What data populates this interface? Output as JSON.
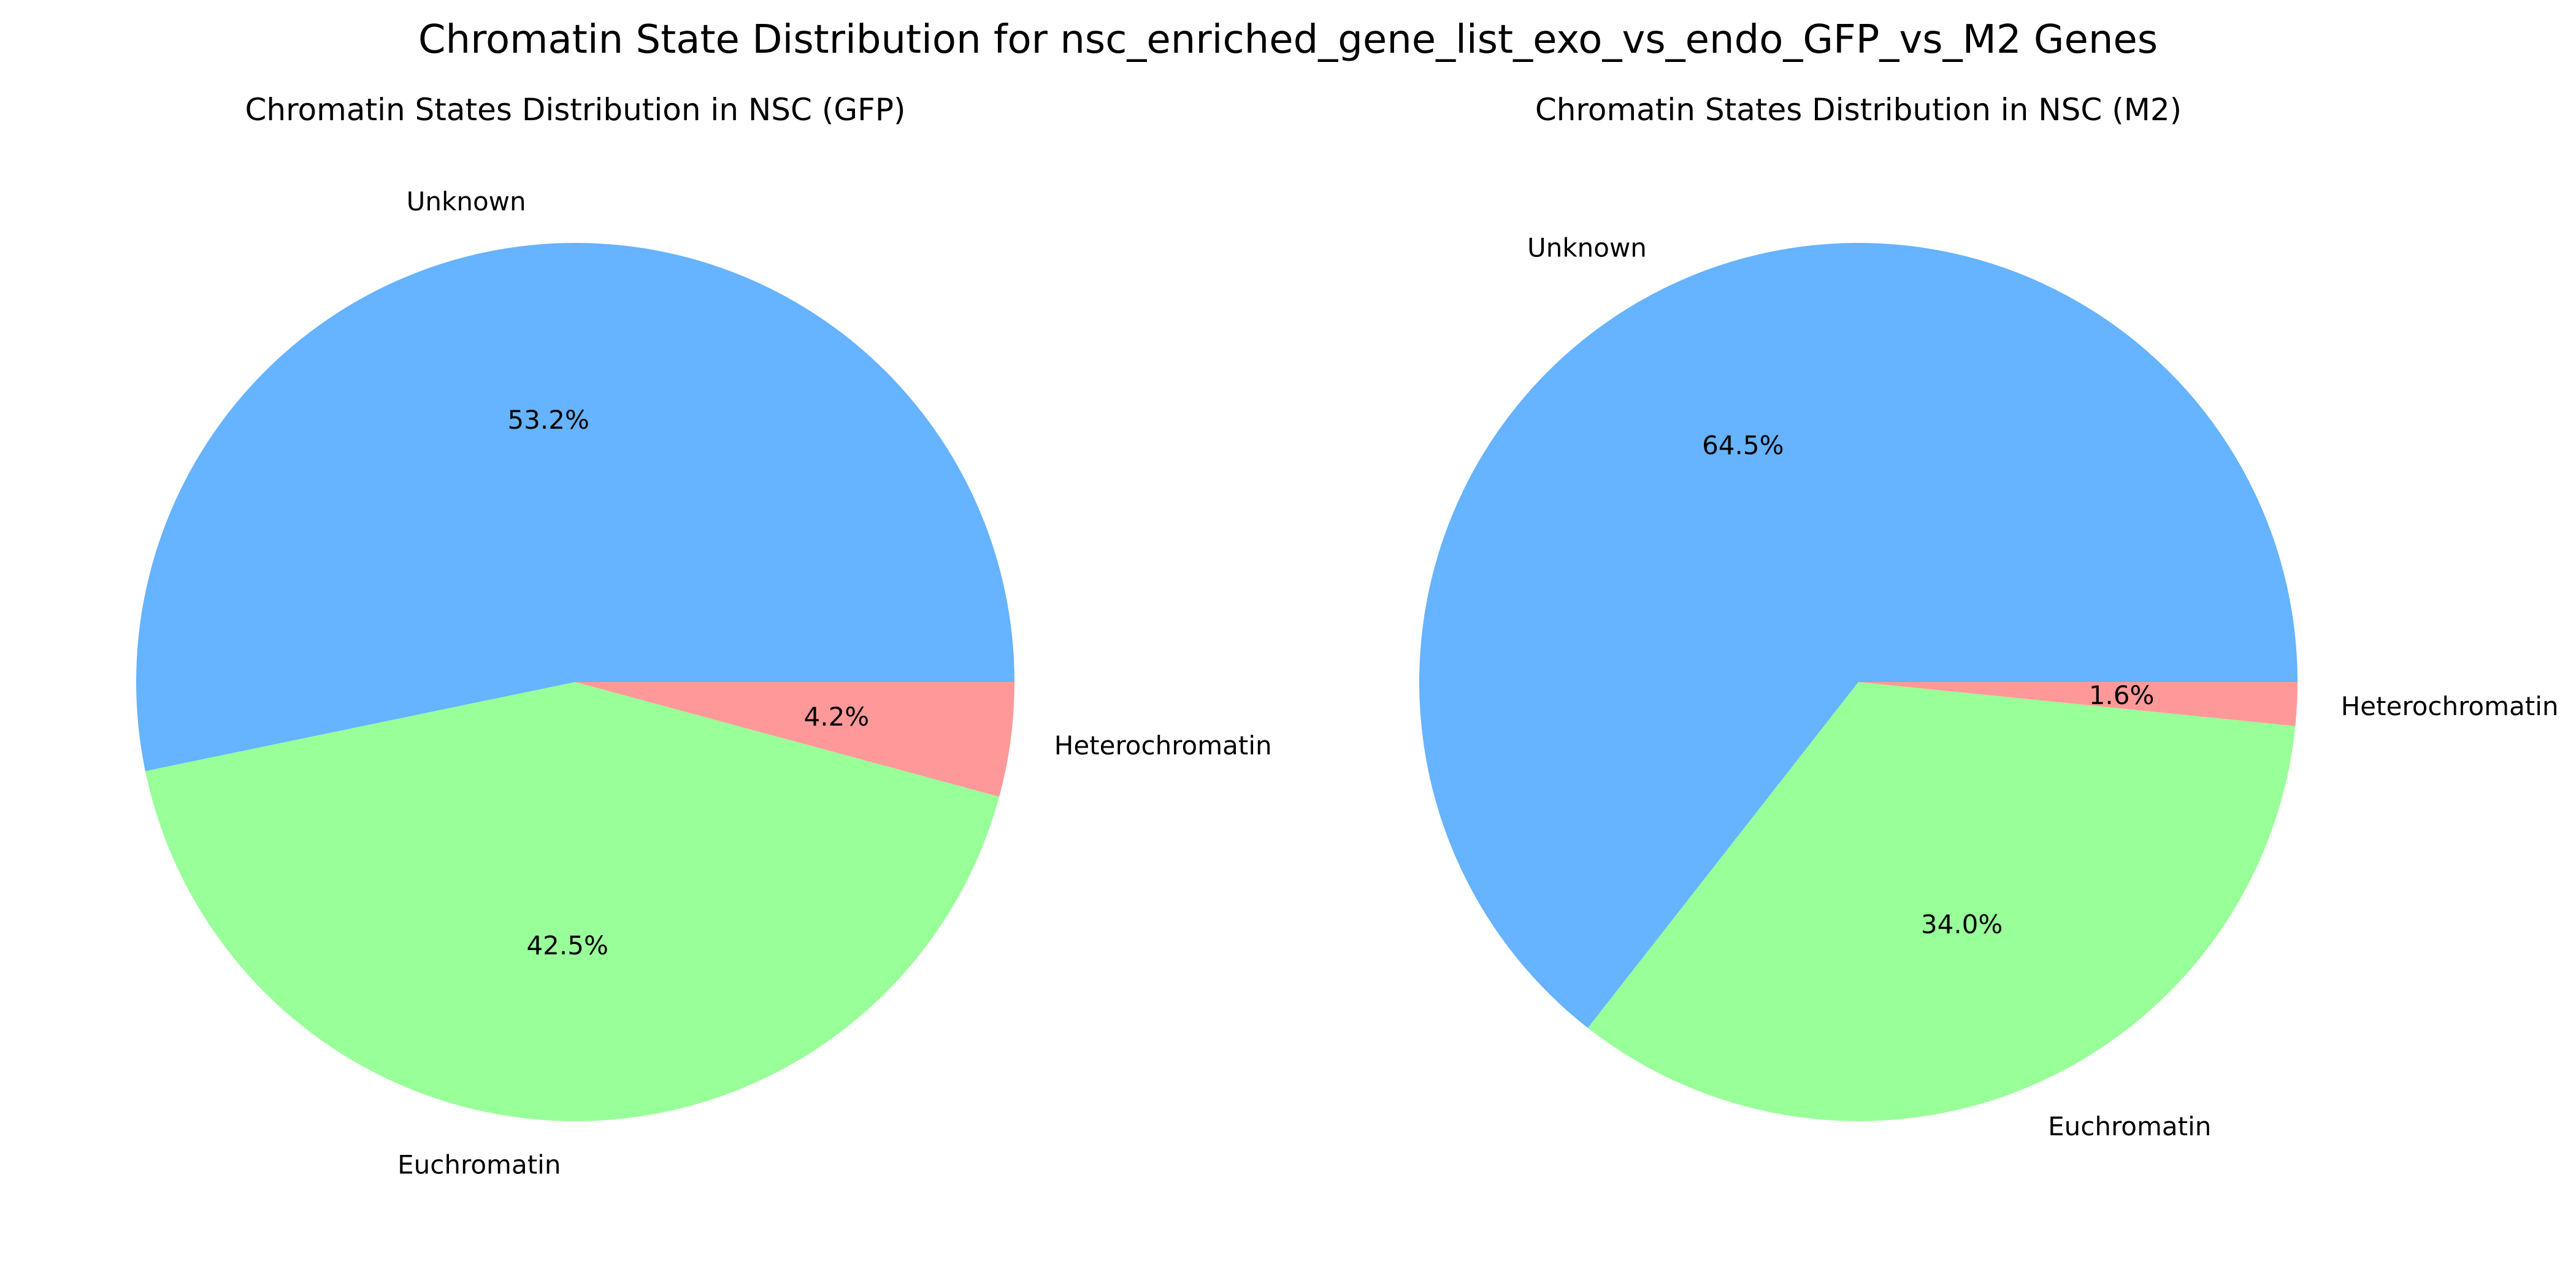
{
  "figure": {
    "title": "Chromatin State Distribution for nsc_enriched_gene_list_exo_vs_endo_GFP_vs_M2 Genes"
  },
  "colors": {
    "Unknown": "#66b3ff",
    "Euchromatin": "#99ff99",
    "Heterochromatin": "#ff9999"
  },
  "chart_data": [
    {
      "type": "pie",
      "title": "Chromatin States Distribution in NSC (GFP)",
      "labels": [
        "Unknown",
        "Euchromatin",
        "Heterochromatin"
      ],
      "values": [
        53.2,
        42.5,
        4.2
      ],
      "value_labels": [
        "53.2%",
        "42.5%",
        "4.2%"
      ],
      "start_angle_deg": 0,
      "direction": "counterclockwise"
    },
    {
      "type": "pie",
      "title": "Chromatin States Distribution in NSC (M2)",
      "labels": [
        "Unknown",
        "Euchromatin",
        "Heterochromatin"
      ],
      "values": [
        64.5,
        34.0,
        1.6
      ],
      "value_labels": [
        "64.5%",
        "34.0%",
        "1.6%"
      ],
      "start_angle_deg": 0,
      "direction": "counterclockwise"
    }
  ]
}
